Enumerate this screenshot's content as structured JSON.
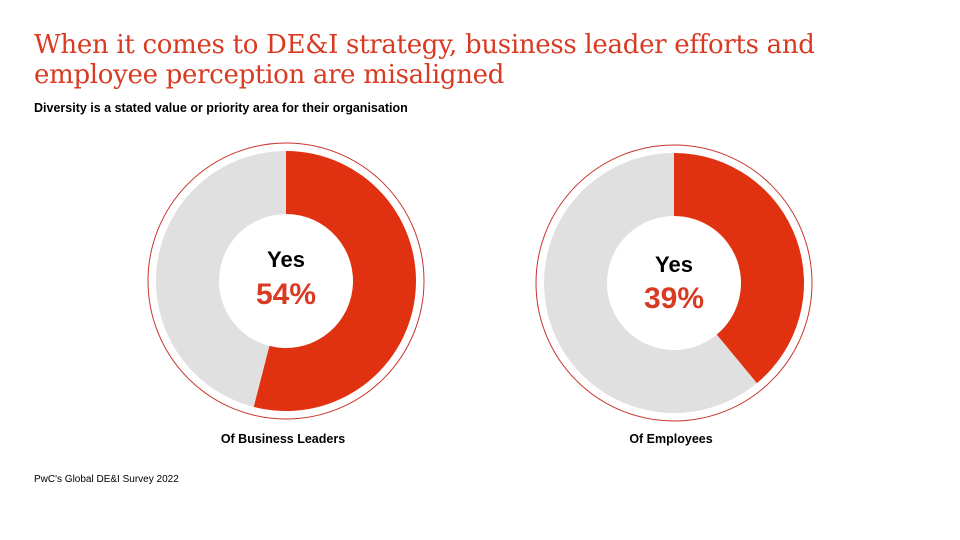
{
  "title": "When it comes to DE&I strategy, business leader efforts and employee perception are misaligned",
  "subtitle": "Diversity  is a stated value or priority area for their organisation",
  "source": "PwC's Global DE&I  Survey 2022",
  "colors": {
    "accent": "#e03210",
    "rest": "#e0e0e0",
    "ring": "#c8352a",
    "pct_text": "#d93a22"
  },
  "chart_data": [
    {
      "type": "pie",
      "variant": "donut",
      "label": "Of Business  Leaders",
      "center_label": "Yes",
      "center_value": "54%",
      "slices": [
        {
          "name": "Yes",
          "value": 54
        },
        {
          "name": "Other",
          "value": 46
        }
      ]
    },
    {
      "type": "pie",
      "variant": "donut",
      "label": "Of Employees",
      "center_label": "Yes",
      "center_value": "39%",
      "slices": [
        {
          "name": "Yes",
          "value": 39
        },
        {
          "name": "Other",
          "value": 61
        }
      ]
    }
  ]
}
